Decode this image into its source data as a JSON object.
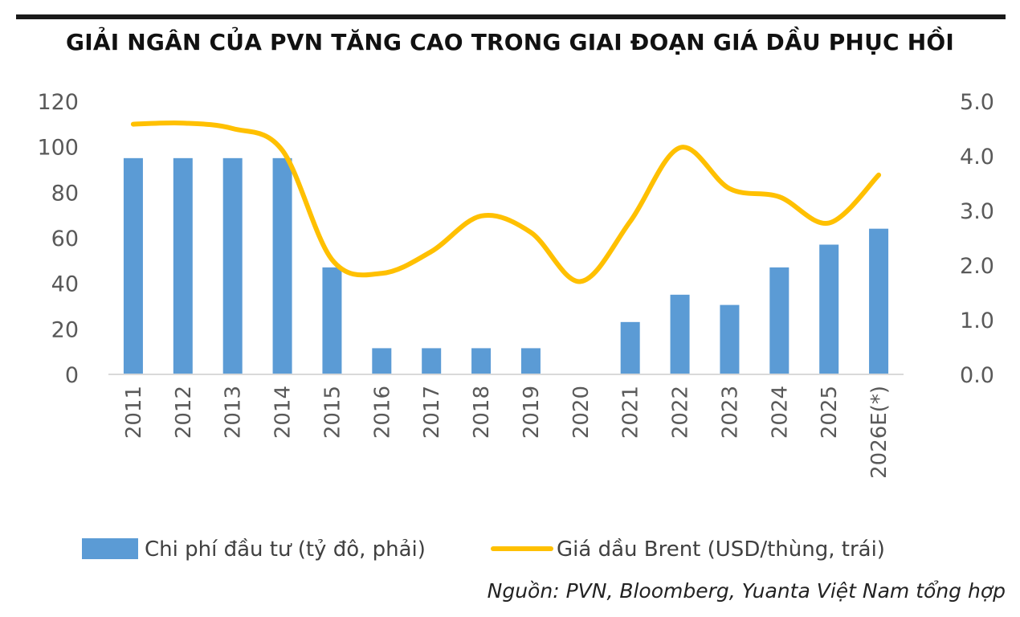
{
  "title": "GIẢI NGÂN CỦA PVN TĂNG CAO TRONG GIAI ĐOẠN GIÁ DẦU PHỤC HỒI",
  "source": "Nguồn: PVN, Bloomberg, Yuanta Việt Nam tổng hợp",
  "colors": {
    "bar": "#5b9bd5",
    "line": "#ffc000",
    "axis": "#d9d9d9",
    "text": "#595959"
  },
  "chart_data": {
    "type": "bar",
    "categories": [
      "2011",
      "2012",
      "2013",
      "2014",
      "2015",
      "2016",
      "2017",
      "2018",
      "2019",
      "2020",
      "2021",
      "2022",
      "2023",
      "2024",
      "2025",
      "2026E(*)"
    ],
    "left_axis": {
      "ylim": [
        0,
        120
      ],
      "ticks": [
        "0",
        "20",
        "40",
        "60",
        "80",
        "100",
        "120"
      ]
    },
    "right_axis": {
      "ylim": [
        0,
        5
      ],
      "ticks": [
        "0.0",
        "1.0",
        "2.0",
        "3.0",
        "4.0",
        "5.0"
      ]
    },
    "series": [
      {
        "name": "Chi phí đầu tư (tỷ đô, phải)",
        "type": "bar",
        "axis": "left",
        "values": [
          95,
          95,
          95,
          95,
          47,
          11.5,
          11.5,
          11.5,
          11.5,
          0,
          23,
          35,
          30.5,
          47,
          57,
          64
        ]
      },
      {
        "name": "Giá dầu Brent (USD/thùng, trái)",
        "type": "line",
        "axis": "right",
        "smooth": true,
        "values": [
          4.58,
          4.6,
          4.5,
          4.1,
          2.1,
          1.85,
          2.25,
          2.9,
          2.6,
          1.7,
          2.8,
          4.15,
          3.4,
          3.25,
          2.77,
          3.65
        ]
      }
    ],
    "legend": "bottom",
    "grid": false
  }
}
